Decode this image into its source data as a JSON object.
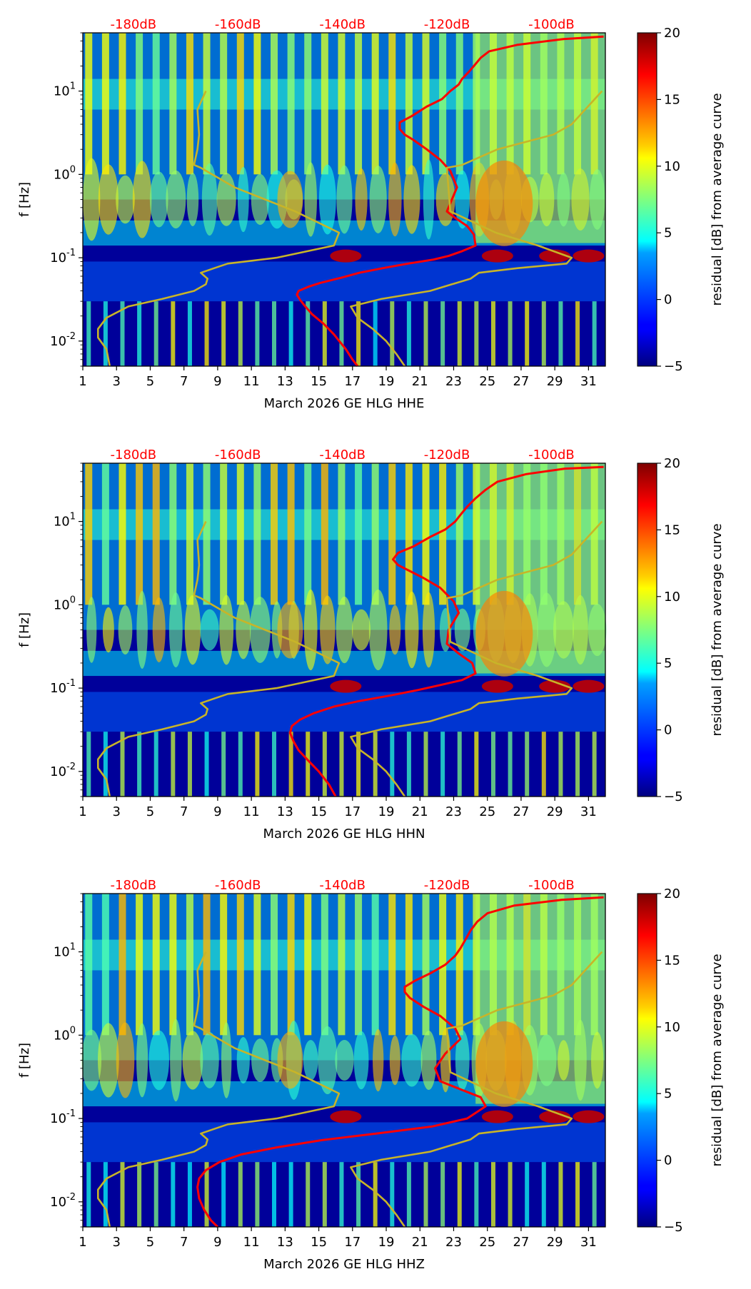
{
  "colors": {
    "reference_curve": "#ff0000",
    "station_curve": "#c8b428",
    "reference_label": "#ff0000",
    "colormap": "jet"
  },
  "chart_data": [
    {
      "type": "heatmap",
      "title": "",
      "xlabel": "March 2026 GE HLG  HHE",
      "ylabel": "f [Hz]",
      "colorbar_label": "residual [dB] from average curve",
      "x_tick_labels": [
        "1",
        "3",
        "5",
        "7",
        "9",
        "11",
        "13",
        "15",
        "17",
        "19",
        "21",
        "23",
        "25",
        "27",
        "29",
        "31"
      ],
      "x_ticks": [
        1,
        3,
        5,
        7,
        9,
        11,
        13,
        15,
        17,
        19,
        21,
        23,
        25,
        27,
        29,
        31
      ],
      "xlim": [
        1,
        32
      ],
      "y_scale": "log",
      "y_tick_labels": [
        "10^-2",
        "10^-1",
        "10^0",
        "10^1"
      ],
      "y_ticks": [
        0.01,
        0.1,
        1,
        10
      ],
      "ylim": [
        0.005,
        50
      ],
      "colorbar_ticks": [
        -5,
        0,
        5,
        10,
        15,
        20
      ],
      "colorbar_range": [
        -5,
        20
      ],
      "top_axis_labels": [
        "-180dB",
        "-160dB",
        "-140dB",
        "-120dB",
        "-100dB"
      ],
      "top_axis_positions_x": [
        4,
        10.2,
        16.4,
        22.6,
        28.8
      ],
      "series": [
        {
          "name": "",
          "role": "reference",
          "x": [
            17.3,
            17,
            16.6,
            15.9,
            15.3,
            14.6,
            14.2,
            13.9,
            13.7,
            13.8,
            14.4,
            15.1,
            16.4,
            17.4,
            18.8,
            20.3,
            21.8,
            22.7,
            23.5,
            24.3,
            24.2,
            23.8,
            23.1,
            22.6,
            22.8,
            23.2,
            22.8,
            22.2,
            21.4,
            20.6,
            20.1,
            19.8,
            19.8,
            20.5,
            21.4,
            22.3,
            22.8,
            23.3,
            23.5,
            23.9,
            24.2,
            24.6,
            25.1,
            26.8,
            29.5,
            31.9
          ],
          "y": [
            0.005,
            0.006,
            0.008,
            0.012,
            0.016,
            0.021,
            0.026,
            0.031,
            0.036,
            0.04,
            0.045,
            0.05,
            0.058,
            0.066,
            0.075,
            0.085,
            0.095,
            0.105,
            0.12,
            0.14,
            0.19,
            0.24,
            0.3,
            0.36,
            0.45,
            0.7,
            1.1,
            1.5,
            2.0,
            2.6,
            3.0,
            3.5,
            4.2,
            5.0,
            6.5,
            8.0,
            10.0,
            12,
            14,
            17,
            20,
            25,
            30,
            36,
            42,
            45
          ]
        },
        {
          "name": "",
          "role": "station",
          "x": [
            2.6,
            2.4,
            1.9,
            1.9,
            2.4,
            3.7,
            5.7,
            7.6,
            8.3,
            8.4,
            8.0,
            8.8,
            9.6,
            12.5,
            15.9,
            16.2,
            13.6,
            10.0,
            8.0,
            7.6,
            7.8,
            7.9,
            7.8,
            8.3
          ],
          "y": [
            0.005,
            0.008,
            0.011,
            0.014,
            0.019,
            0.026,
            0.032,
            0.04,
            0.048,
            0.056,
            0.066,
            0.075,
            0.085,
            0.1,
            0.14,
            0.2,
            0.36,
            0.7,
            1.2,
            1.3,
            2.0,
            3.0,
            6.0,
            10.0
          ]
        },
        {
          "name": "",
          "role": "station-shifted",
          "x": [
            20.1,
            19.6,
            19.0,
            18.2,
            17.3,
            16.9,
            18.7,
            21.6,
            22.9,
            24.0,
            24.5,
            26.8,
            29.7,
            30.0,
            28.0,
            25.5,
            22.8,
            22.6,
            23.5,
            25.6,
            28.9,
            30.0,
            30.8,
            31.8
          ],
          "y": [
            0.005,
            0.007,
            0.01,
            0.014,
            0.019,
            0.026,
            0.032,
            0.04,
            0.048,
            0.056,
            0.066,
            0.075,
            0.085,
            0.1,
            0.14,
            0.2,
            0.36,
            1.2,
            1.3,
            2.0,
            3.0,
            4.0,
            6.0,
            10.0
          ]
        }
      ]
    },
    {
      "type": "heatmap",
      "title": "",
      "xlabel": "March 2026 GE HLG  HHN",
      "ylabel": "f [Hz]",
      "colorbar_label": "residual [dB] from average curve",
      "x_tick_labels": [
        "1",
        "3",
        "5",
        "7",
        "9",
        "11",
        "13",
        "15",
        "17",
        "19",
        "21",
        "23",
        "25",
        "27",
        "29",
        "31"
      ],
      "x_ticks": [
        1,
        3,
        5,
        7,
        9,
        11,
        13,
        15,
        17,
        19,
        21,
        23,
        25,
        27,
        29,
        31
      ],
      "xlim": [
        1,
        32
      ],
      "y_scale": "log",
      "y_tick_labels": [
        "10^-2",
        "10^-1",
        "10^0",
        "10^1"
      ],
      "y_ticks": [
        0.01,
        0.1,
        1,
        10
      ],
      "ylim": [
        0.005,
        50
      ],
      "colorbar_ticks": [
        -5,
        0,
        5,
        10,
        15,
        20
      ],
      "colorbar_range": [
        -5,
        20
      ],
      "top_axis_labels": [
        "-180dB",
        "-160dB",
        "-140dB",
        "-120dB",
        "-100dB"
      ],
      "top_axis_positions_x": [
        4,
        10.2,
        16.4,
        22.6,
        28.8
      ],
      "series": [
        {
          "name": "",
          "role": "reference",
          "x": [
            16.0,
            15.6,
            15.0,
            14.3,
            13.8,
            13.5,
            13.3,
            13.4,
            13.9,
            14.7,
            15.9,
            17.4,
            19.3,
            20.9,
            22.3,
            23.5,
            24.3,
            24.1,
            23.3,
            22.6,
            22.7,
            23.3,
            23.0,
            22.2,
            21.2,
            20.3,
            19.7,
            19.4,
            19.7,
            20.6,
            21.6,
            22.5,
            23.1,
            23.4,
            23.8,
            24.3,
            24.9,
            25.6,
            27.3,
            29.6,
            31.9
          ],
          "y": [
            0.005,
            0.007,
            0.01,
            0.014,
            0.018,
            0.023,
            0.029,
            0.035,
            0.042,
            0.05,
            0.06,
            0.07,
            0.082,
            0.095,
            0.11,
            0.125,
            0.15,
            0.2,
            0.26,
            0.34,
            0.5,
            0.8,
            1.1,
            1.6,
            2.1,
            2.6,
            3.0,
            3.5,
            4.2,
            5.0,
            6.5,
            8.0,
            10.0,
            12,
            15,
            19,
            24,
            30,
            37,
            43,
            45
          ]
        },
        {
          "name": "",
          "role": "station",
          "x": [
            2.6,
            2.4,
            1.9,
            1.9,
            2.4,
            3.7,
            5.7,
            7.6,
            8.3,
            8.4,
            8.0,
            8.8,
            9.6,
            12.5,
            15.9,
            16.2,
            13.6,
            10.0,
            8.0,
            7.6,
            7.8,
            7.9,
            7.8,
            8.3
          ],
          "y": [
            0.005,
            0.008,
            0.011,
            0.014,
            0.019,
            0.026,
            0.032,
            0.04,
            0.048,
            0.056,
            0.066,
            0.075,
            0.085,
            0.1,
            0.14,
            0.2,
            0.36,
            0.7,
            1.2,
            1.3,
            2.0,
            3.0,
            6.0,
            10.0
          ]
        },
        {
          "name": "",
          "role": "station-shifted",
          "x": [
            20.1,
            19.6,
            19.0,
            18.2,
            17.3,
            16.9,
            18.7,
            21.6,
            22.9,
            24.0,
            24.5,
            26.8,
            29.7,
            30.0,
            28.0,
            25.5,
            22.8,
            22.6,
            23.5,
            25.6,
            28.9,
            30.0,
            30.8,
            31.8
          ],
          "y": [
            0.005,
            0.007,
            0.01,
            0.014,
            0.019,
            0.026,
            0.032,
            0.04,
            0.048,
            0.056,
            0.066,
            0.075,
            0.085,
            0.1,
            0.14,
            0.2,
            0.36,
            1.2,
            1.3,
            2.0,
            3.0,
            4.0,
            6.0,
            10.0
          ]
        }
      ]
    },
    {
      "type": "heatmap",
      "title": "",
      "xlabel": "March 2026 GE HLG  HHZ",
      "ylabel": "f [Hz]",
      "colorbar_label": "residual [dB] from average curve",
      "x_tick_labels": [
        "1",
        "3",
        "5",
        "7",
        "9",
        "11",
        "13",
        "15",
        "17",
        "19",
        "21",
        "23",
        "25",
        "27",
        "29",
        "31"
      ],
      "x_ticks": [
        1,
        3,
        5,
        7,
        9,
        11,
        13,
        15,
        17,
        19,
        21,
        23,
        25,
        27,
        29,
        31
      ],
      "xlim": [
        1,
        32
      ],
      "y_scale": "log",
      "y_tick_labels": [
        "10^-2",
        "10^-1",
        "10^0",
        "10^1"
      ],
      "y_ticks": [
        0.01,
        0.1,
        1,
        10
      ],
      "ylim": [
        0.005,
        50
      ],
      "colorbar_ticks": [
        -5,
        0,
        5,
        10,
        15,
        20
      ],
      "colorbar_range": [
        -5,
        20
      ],
      "top_axis_labels": [
        "-180dB",
        "-160dB",
        "-140dB",
        "-120dB",
        "-100dB"
      ],
      "top_axis_positions_x": [
        4,
        10.2,
        16.4,
        22.6,
        28.8
      ],
      "series": [
        {
          "name": "",
          "role": "reference",
          "x": [
            9.0,
            8.6,
            8.2,
            7.9,
            7.8,
            7.9,
            8.3,
            9.1,
            10.4,
            12.5,
            15.2,
            18.4,
            21.7,
            23.8,
            24.9,
            24.6,
            23.5,
            22.2,
            21.9,
            22.5,
            23.4,
            23.1,
            22.2,
            21.2,
            20.4,
            20.1,
            20.1,
            20.7,
            21.6,
            22.5,
            23.1,
            23.4,
            23.7,
            24.0,
            24.4,
            25.0,
            26.6,
            29.4,
            31.9
          ],
          "y": [
            0.005,
            0.006,
            0.008,
            0.011,
            0.015,
            0.019,
            0.024,
            0.03,
            0.037,
            0.045,
            0.055,
            0.066,
            0.08,
            0.1,
            0.14,
            0.18,
            0.22,
            0.28,
            0.4,
            0.6,
            0.9,
            1.2,
            1.7,
            2.2,
            2.8,
            3.3,
            3.8,
            4.5,
            5.5,
            7,
            9,
            11,
            14,
            18,
            23,
            29,
            36,
            42,
            45
          ]
        },
        {
          "name": "",
          "role": "station",
          "x": [
            2.6,
            2.4,
            1.9,
            1.9,
            2.4,
            3.7,
            5.7,
            7.6,
            8.3,
            8.4,
            8.0,
            8.8,
            9.6,
            12.5,
            15.9,
            16.2,
            13.6,
            10.0,
            8.0,
            7.6,
            7.8,
            7.9,
            7.8,
            8.3
          ],
          "y": [
            0.005,
            0.008,
            0.011,
            0.014,
            0.019,
            0.026,
            0.032,
            0.04,
            0.048,
            0.056,
            0.066,
            0.075,
            0.085,
            0.1,
            0.14,
            0.2,
            0.36,
            0.7,
            1.2,
            1.3,
            2.0,
            3.0,
            6.0,
            10.0
          ]
        },
        {
          "name": "",
          "role": "station-shifted",
          "x": [
            20.1,
            19.6,
            19.0,
            18.2,
            17.3,
            16.9,
            18.7,
            21.6,
            22.9,
            24.0,
            24.5,
            26.8,
            29.7,
            30.0,
            28.0,
            25.5,
            22.8,
            22.6,
            23.5,
            25.6,
            28.9,
            30.0,
            30.8,
            31.8
          ],
          "y": [
            0.005,
            0.007,
            0.01,
            0.014,
            0.019,
            0.026,
            0.032,
            0.04,
            0.048,
            0.056,
            0.066,
            0.075,
            0.085,
            0.1,
            0.14,
            0.2,
            0.36,
            1.2,
            1.3,
            2.0,
            3.0,
            4.0,
            6.0,
            10.0
          ]
        }
      ]
    }
  ]
}
